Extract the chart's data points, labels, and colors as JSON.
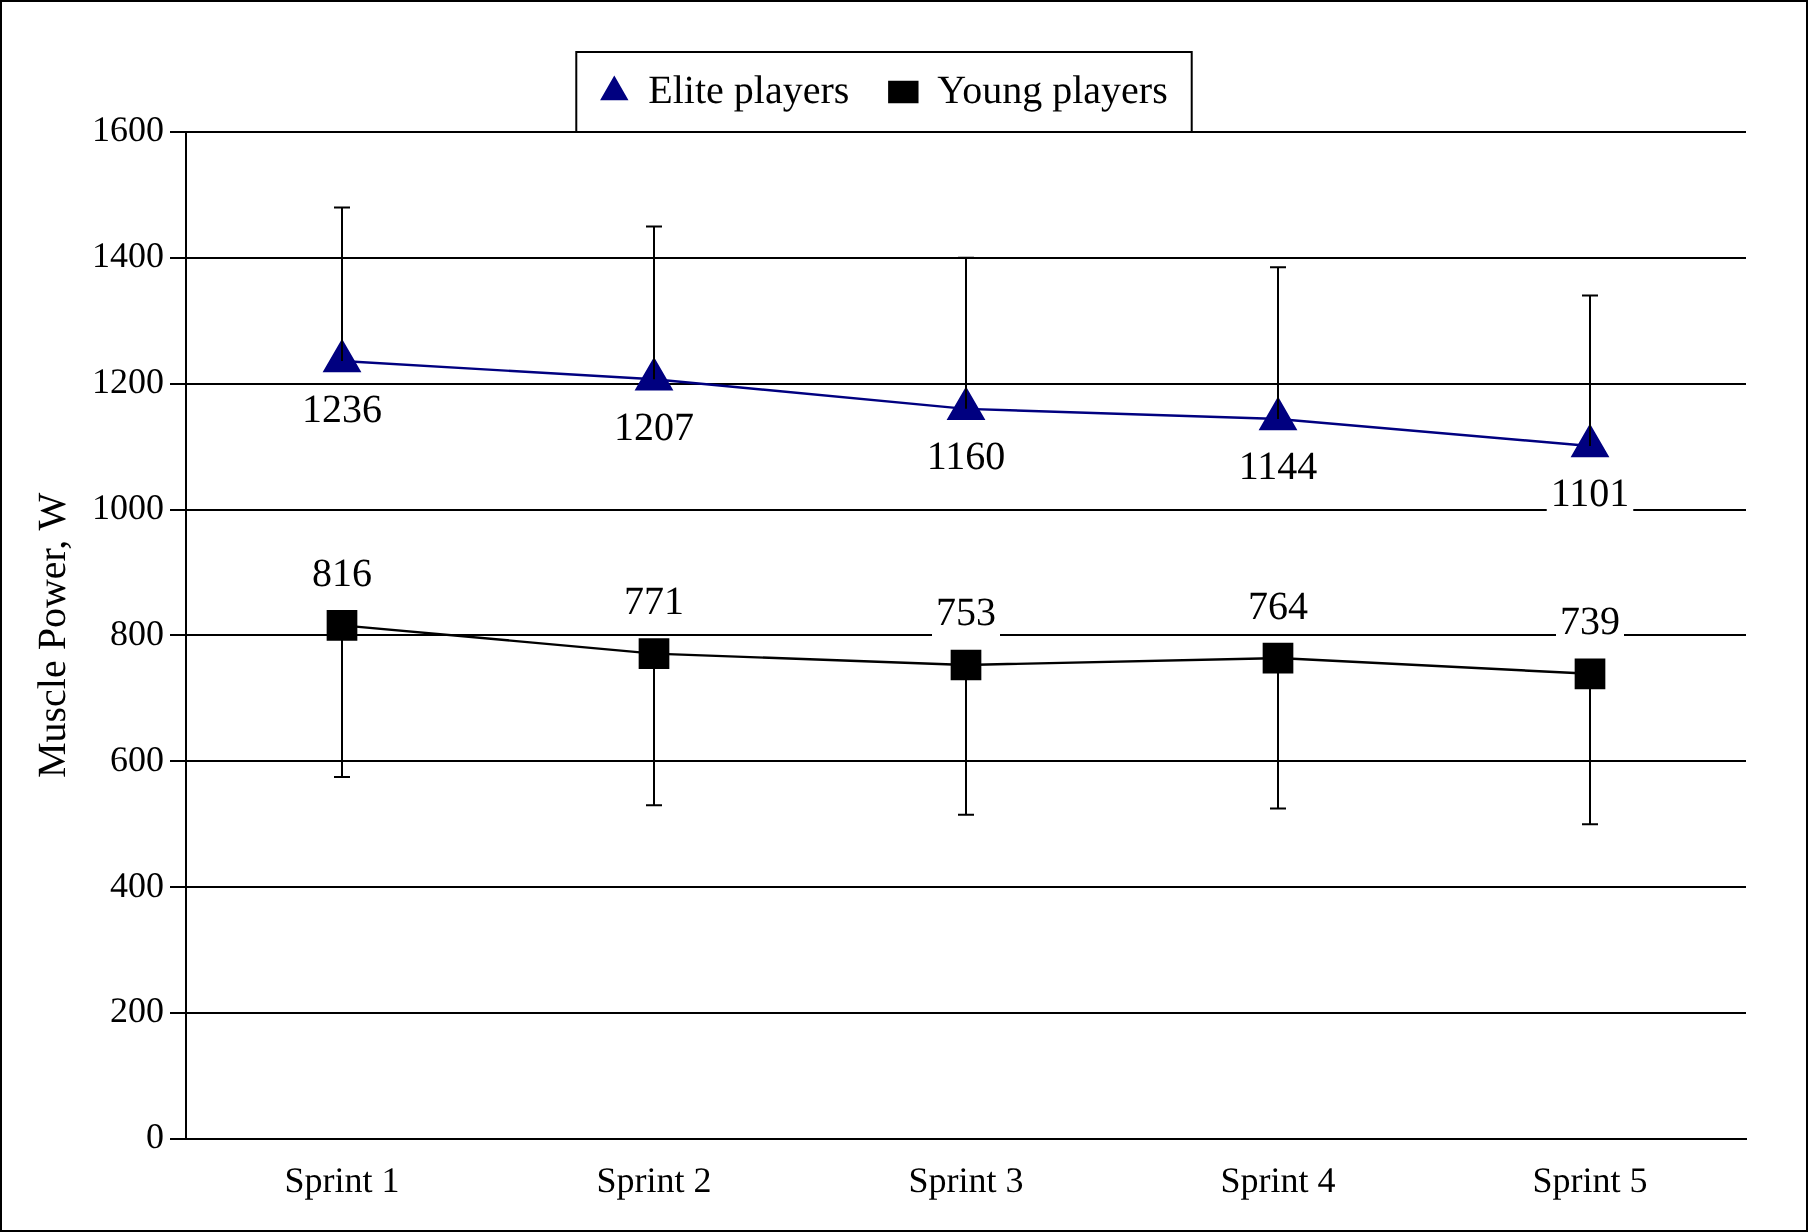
{
  "chart_data": {
    "type": "line",
    "ylabel": "Muscle Power, W",
    "categories": [
      "Sprint 1",
      "Sprint 2",
      "Sprint 3",
      "Sprint 4",
      "Sprint 5"
    ],
    "series": [
      {
        "name": "Elite players",
        "color": "#000080",
        "marker": "triangle",
        "values": [
          1236,
          1207,
          1160,
          1144,
          1101
        ],
        "errors": [
          [
            1236,
            1480
          ],
          [
            1207,
            1450
          ],
          [
            1160,
            1400
          ],
          [
            1144,
            1385
          ],
          [
            1101,
            1340
          ]
        ]
      },
      {
        "name": "Young players",
        "color": "#000000",
        "marker": "square",
        "values": [
          816,
          771,
          753,
          764,
          739
        ],
        "errors": [
          [
            575,
            816
          ],
          [
            530,
            771
          ],
          [
            515,
            753
          ],
          [
            525,
            764
          ],
          [
            500,
            739
          ]
        ]
      }
    ],
    "ylim": [
      0,
      1600
    ],
    "yticks": [
      0,
      200,
      400,
      600,
      800,
      1000,
      1200,
      1400,
      1600
    ],
    "grid": "y",
    "legend": "top",
    "data_labels": true
  }
}
